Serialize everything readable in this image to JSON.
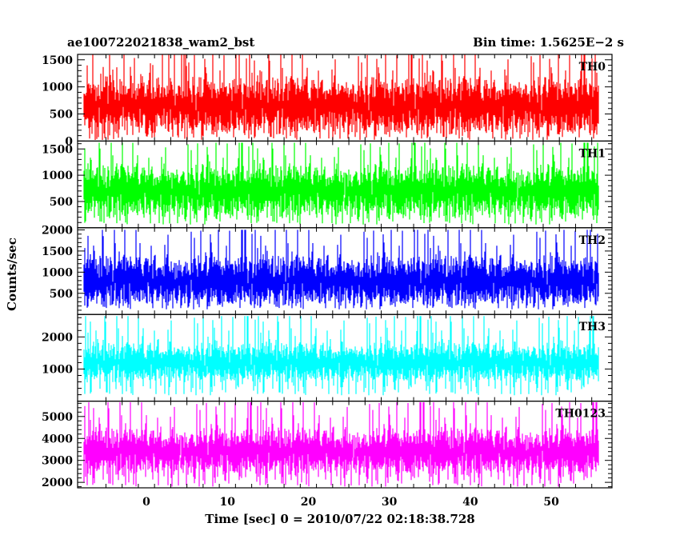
{
  "title": "ae100722021838_wam2_bst",
  "bin_time_label": "Bin time: 1.5625E−2 s",
  "xlabel": "Time [sec] 0 = 2010/07/22 02:18:38.728",
  "ylabel": "Counts/sec",
  "chart_data": {
    "type": "line",
    "title": "ae100722021838_wam2_bst",
    "subtitle": "Bin time: 1.5625E−2 s",
    "xlabel": "Time [sec] 0 = 2010/07/22 02:18:38.728",
    "ylabel": "Counts/sec",
    "xlim": [
      -8.5,
      57.5
    ],
    "x_ticks": [
      0,
      10,
      20,
      30,
      40,
      50
    ],
    "x_range_data": [
      -7.7,
      55.8
    ],
    "bin_time": 0.015625,
    "grid": false,
    "series": [
      {
        "name": "TH0",
        "color": "#ff0000",
        "ylim": [
          0,
          1600
        ],
        "y_ticks": [
          0,
          500,
          1000,
          1500
        ],
        "level": 650,
        "spread": 450,
        "min_dip": 20,
        "max_peak": 1600
      },
      {
        "name": "TH1",
        "color": "#00ff00",
        "ylim": [
          0,
          1650
        ],
        "y_ticks": [
          500,
          1000,
          1500
        ],
        "level": 700,
        "spread": 420,
        "min_dip": 60,
        "max_peak": 1620
      },
      {
        "name": "TH2",
        "color": "#0000ff",
        "ylim": [
          0,
          2050
        ],
        "y_ticks": [
          500,
          1000,
          1500,
          2000
        ],
        "level": 800,
        "spread": 500,
        "min_dip": 120,
        "max_peak": 2000
      },
      {
        "name": "TH3",
        "color": "#00ffff",
        "ylim": [
          0,
          2700
        ],
        "y_ticks": [
          1000,
          2000
        ],
        "level": 1200,
        "spread": 520,
        "min_dip": 180,
        "max_peak": 2650
      },
      {
        "name": "TH0123",
        "color": "#ff00ff",
        "ylim": [
          1750,
          5700
        ],
        "y_ticks": [
          2000,
          3000,
          4000,
          5000
        ],
        "level": 3400,
        "spread": 900,
        "min_dip": 1800,
        "max_peak": 5650
      }
    ]
  }
}
